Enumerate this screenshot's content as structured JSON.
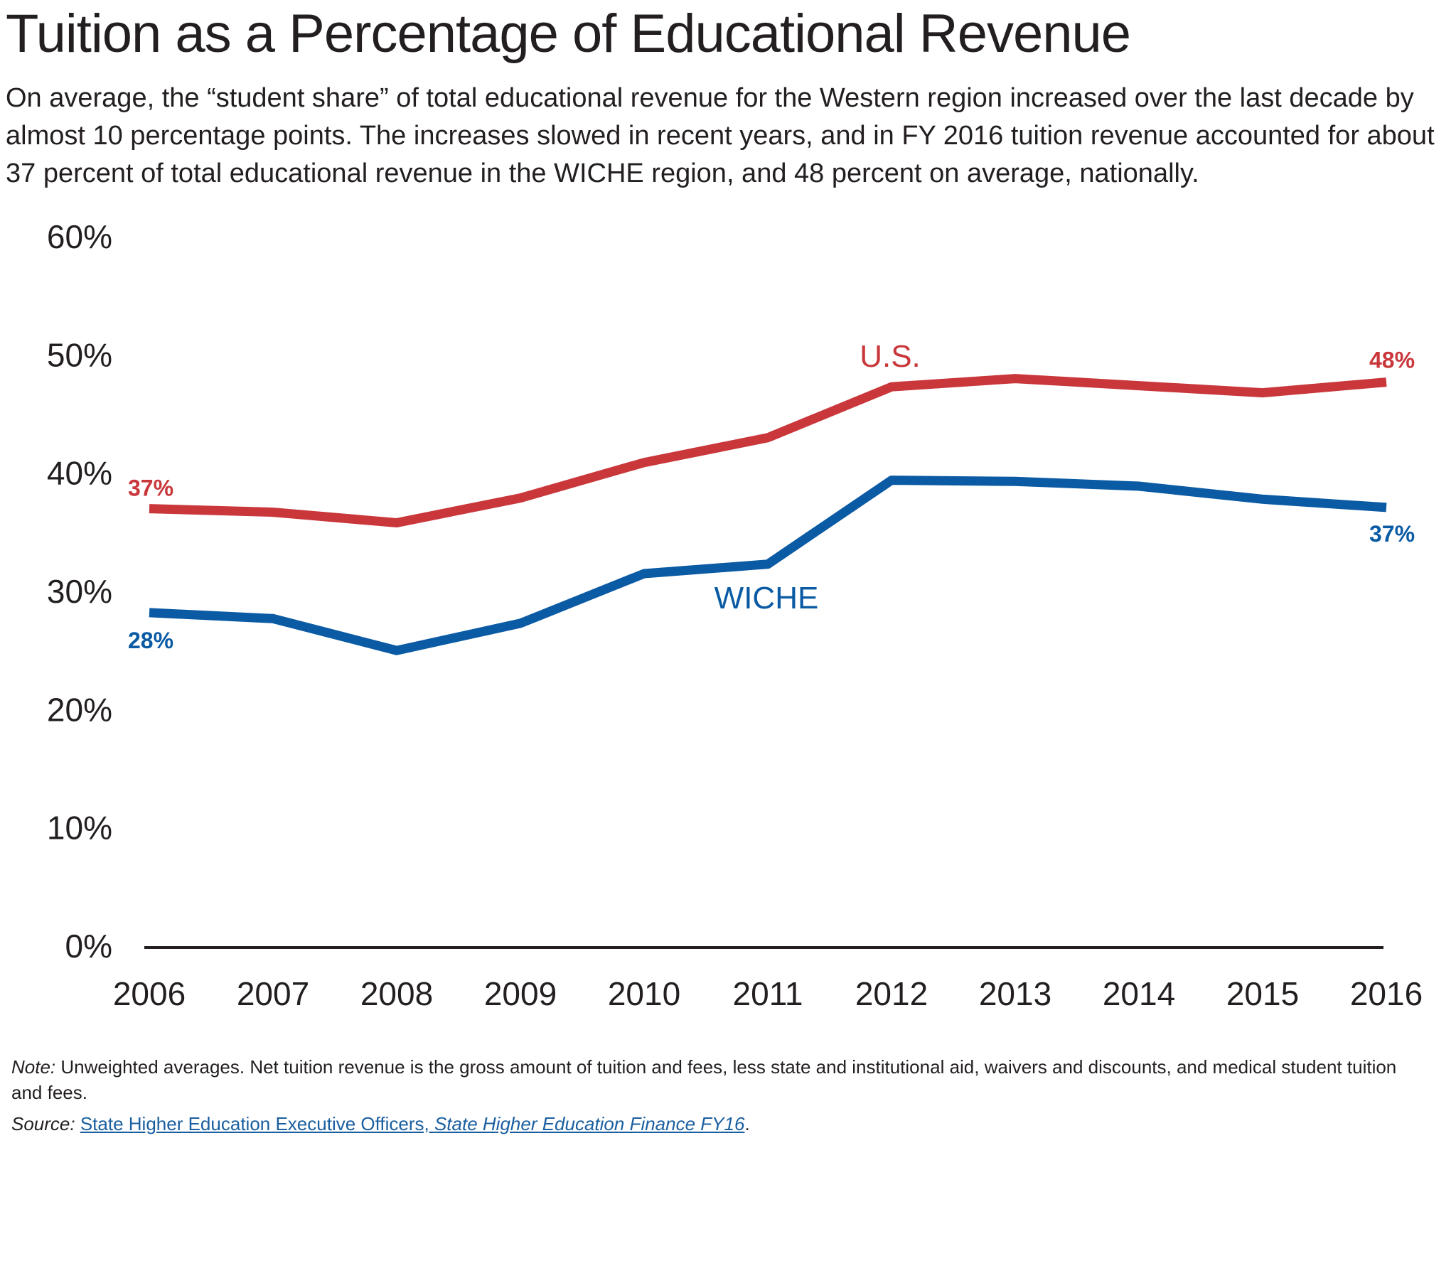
{
  "header": {
    "title": "Tuition as a Percentage of Educational Revenue",
    "subtitle": "On average, the “student share” of total educational revenue for the Western region increased over the last decade by almost 10 percentage points. The increases slowed in recent years, and in FY 2016 tuition revenue accounted for about 37 percent of total educational revenue in the WICHE region, and 48 percent on average, nationally."
  },
  "footer": {
    "note_label": "Note:",
    "note_text": " Unweighted averages. Net tuition revenue is the gross amount of tuition and fees, less state and institutional aid, waivers and discounts, and medical student tuition and fees.",
    "source_label": "Source:",
    "source_link": "State Higher Education Executive Officers, ",
    "source_link_italic": "State Higher Education Finance FY16",
    "source_end": "."
  },
  "chart_data": {
    "type": "line",
    "title": "",
    "xlabel": "",
    "ylabel": "",
    "x": [
      2006,
      2007,
      2008,
      2009,
      2010,
      2011,
      2012,
      2013,
      2014,
      2015,
      2016
    ],
    "ylim": [
      0,
      60
    ],
    "yticks": [
      "0%",
      "10%",
      "20%",
      "30%",
      "40%",
      "50%",
      "60%"
    ],
    "grid": false,
    "series": [
      {
        "name": "U.S.",
        "color": "#c9373b",
        "values": [
          37.0,
          36.7,
          35.8,
          37.9,
          40.9,
          43.0,
          47.3,
          48.0,
          47.4,
          46.8,
          47.7
        ],
        "label_start": "37%",
        "label_end": "48%"
      },
      {
        "name": "WICHE",
        "color": "#0a5aa4",
        "values": [
          28.2,
          27.7,
          25.0,
          27.3,
          31.5,
          32.3,
          39.4,
          39.3,
          38.9,
          37.8,
          37.1
        ],
        "label_start": "28%",
        "label_end": "37%"
      }
    ]
  }
}
